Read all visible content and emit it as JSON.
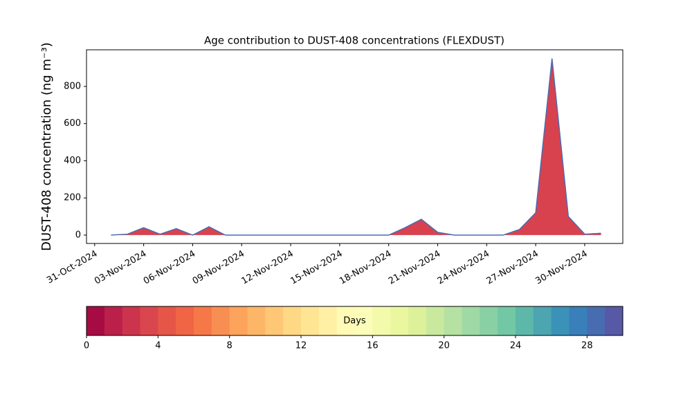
{
  "chart_data": {
    "type": "area",
    "title": "Age contribution to DUST-408 concentrations (FLEXDUST)",
    "y_label": "DUST-408 concentration (ng m⁻³)",
    "x": [
      "2024-11-01",
      "2024-11-02",
      "2024-11-03",
      "2024-11-04",
      "2024-11-05",
      "2024-11-06",
      "2024-11-07",
      "2024-11-08",
      "2024-11-09",
      "2024-11-10",
      "2024-11-11",
      "2024-11-12",
      "2024-11-13",
      "2024-11-14",
      "2024-11-15",
      "2024-11-16",
      "2024-11-17",
      "2024-11-18",
      "2024-11-19",
      "2024-11-20",
      "2024-11-21",
      "2024-11-22",
      "2024-11-23",
      "2024-11-24",
      "2024-11-25",
      "2024-11-26",
      "2024-11-27",
      "2024-11-28",
      "2024-11-29",
      "2024-11-30",
      "2024-12-01"
    ],
    "values": [
      0,
      5,
      40,
      5,
      35,
      0,
      45,
      0,
      0,
      0,
      0,
      0,
      0,
      0,
      0,
      0,
      0,
      0,
      40,
      85,
      15,
      0,
      0,
      0,
      0,
      30,
      120,
      950,
      100,
      5,
      10
    ],
    "fill_color": "#d8424e",
    "line_color": "#4a6bb0",
    "xlim": [
      "2024-10-30T12:00",
      "2024-12-02T08:00"
    ],
    "xticks": [
      {
        "value": "2024-10-31",
        "label": "31-Oct-2024"
      },
      {
        "value": "2024-11-03",
        "label": "03-Nov-2024"
      },
      {
        "value": "2024-11-06",
        "label": "06-Nov-2024"
      },
      {
        "value": "2024-11-09",
        "label": "09-Nov-2024"
      },
      {
        "value": "2024-11-12",
        "label": "12-Nov-2024"
      },
      {
        "value": "2024-11-15",
        "label": "15-Nov-2024"
      },
      {
        "value": "2024-11-18",
        "label": "18-Nov-2024"
      },
      {
        "value": "2024-11-21",
        "label": "21-Nov-2024"
      },
      {
        "value": "2024-11-24",
        "label": "24-Nov-2024"
      },
      {
        "value": "2024-11-27",
        "label": "27-Nov-2024"
      },
      {
        "value": "2024-11-30",
        "label": "30-Nov-2024"
      }
    ],
    "ylim": [
      -45,
      997
    ],
    "yticks": [
      0,
      200,
      400,
      600,
      800
    ],
    "colorbar": {
      "label": "Days",
      "lim": [
        0,
        30
      ],
      "ticks": [
        0,
        4,
        8,
        12,
        16,
        20,
        24,
        28
      ],
      "segments": 30,
      "colors": [
        "#9e0142",
        "#d53e4f",
        "#f46d43",
        "#fdae61",
        "#fee08b",
        "#ffffbf",
        "#e6f598",
        "#abdda4",
        "#66c2a5",
        "#3288bd",
        "#5e4fa2"
      ]
    }
  }
}
